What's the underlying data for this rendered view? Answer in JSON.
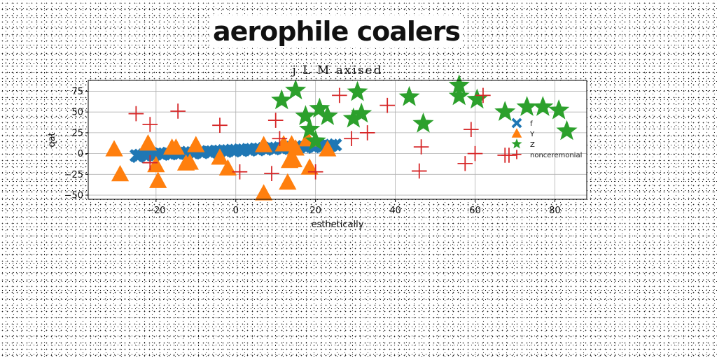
{
  "banner": "aerophile coalers",
  "chart_data": {
    "type": "scatter",
    "title": "j L M axised",
    "xlabel": "esthetically",
    "ylabel": "qat",
    "xlim": [
      -37,
      88
    ],
    "ylim": [
      -55,
      88
    ],
    "xticks": [
      -20,
      0,
      20,
      40,
      60,
      80
    ],
    "xtick_labels": [
      "−20",
      "0",
      "20",
      "40",
      "60",
      "80"
    ],
    "yticks": [
      -50,
      -25,
      0,
      25,
      50,
      75
    ],
    "ytick_labels": [
      "−50",
      "−25",
      "0",
      "25",
      "50",
      "75"
    ],
    "grid": true,
    "legend_position": "center-right",
    "series": [
      {
        "name": "f",
        "marker": "x",
        "color": "#1f77b4",
        "points": [
          [
            -25,
            -2.5
          ],
          [
            -24,
            -2
          ],
          [
            -23,
            -1.5
          ],
          [
            -22,
            -1.5
          ],
          [
            -21,
            -1
          ],
          [
            -20,
            -0.5
          ],
          [
            -19,
            0
          ],
          [
            -18,
            -0.5
          ],
          [
            -17,
            0.5
          ],
          [
            -16,
            0
          ],
          [
            -15,
            0.5
          ],
          [
            -14,
            1
          ],
          [
            -13,
            1
          ],
          [
            -12,
            1.5
          ],
          [
            -11,
            1
          ],
          [
            -10,
            1.5
          ],
          [
            -9,
            2
          ],
          [
            -8,
            2
          ],
          [
            -7,
            2.5
          ],
          [
            -6,
            2
          ],
          [
            -5,
            3
          ],
          [
            -4,
            3
          ],
          [
            -3,
            3.5
          ],
          [
            -2,
            3.5
          ],
          [
            -1,
            4
          ],
          [
            0,
            4
          ],
          [
            1,
            4.5
          ],
          [
            2,
            4.5
          ],
          [
            3,
            5
          ],
          [
            4,
            5
          ],
          [
            5,
            5.5
          ],
          [
            6,
            5.5
          ],
          [
            7,
            6
          ],
          [
            8,
            6
          ],
          [
            9,
            6.5
          ],
          [
            10,
            6.5
          ],
          [
            11,
            7
          ],
          [
            12,
            7
          ],
          [
            13,
            7.5
          ],
          [
            14,
            7.5
          ],
          [
            15,
            8
          ],
          [
            16,
            8
          ],
          [
            17,
            8.5
          ],
          [
            18,
            8.5
          ],
          [
            19,
            9
          ],
          [
            20,
            9
          ],
          [
            21,
            9.5
          ],
          [
            22,
            9.5
          ],
          [
            23,
            10
          ],
          [
            24,
            10
          ],
          [
            25,
            10.5
          ],
          [
            -24.5,
            -3.5
          ],
          [
            -22.5,
            -2.5
          ],
          [
            -20.5,
            -1.5
          ],
          [
            -18.5,
            -1
          ],
          [
            -16.5,
            -0.5
          ],
          [
            -14.5,
            0
          ],
          [
            -12.5,
            0.5
          ],
          [
            -10.5,
            0.5
          ],
          [
            -8.5,
            1
          ],
          [
            -6.5,
            1.5
          ],
          [
            -4.5,
            2
          ],
          [
            -2.5,
            2.5
          ],
          [
            -0.5,
            3
          ],
          [
            1.5,
            3.5
          ],
          [
            3.5,
            4
          ],
          [
            5.5,
            4.5
          ],
          [
            7.5,
            5
          ],
          [
            9.5,
            5.5
          ],
          [
            11.5,
            6
          ],
          [
            13.5,
            6.5
          ],
          [
            15.5,
            7
          ],
          [
            17.5,
            7.5
          ],
          [
            19.5,
            8
          ],
          [
            21.5,
            8.5
          ],
          [
            23.5,
            9
          ]
        ]
      },
      {
        "name": "Y",
        "marker": "^",
        "color": "#ff7f0e",
        "points": [
          [
            -30.5,
            5
          ],
          [
            -29,
            -25
          ],
          [
            -22,
            12
          ],
          [
            -20,
            -14
          ],
          [
            -19.5,
            -33
          ],
          [
            -16,
            7
          ],
          [
            -15,
            7
          ],
          [
            -12.5,
            -12
          ],
          [
            -11.5,
            -11
          ],
          [
            -10,
            10
          ],
          [
            -4,
            -5
          ],
          [
            -2,
            -18
          ],
          [
            7,
            10
          ],
          [
            7,
            -48
          ],
          [
            12,
            11
          ],
          [
            13,
            -35
          ],
          [
            13.5,
            -9
          ],
          [
            14,
            11
          ],
          [
            14.5,
            -8
          ],
          [
            15,
            6
          ],
          [
            18,
            17
          ],
          [
            18.5,
            -17
          ],
          [
            23,
            5
          ]
        ]
      },
      {
        "name": "Z",
        "marker": "*",
        "color": "#2ca02c",
        "points": [
          [
            11.5,
            64
          ],
          [
            15,
            76
          ],
          [
            17.5,
            45
          ],
          [
            18.5,
            29
          ],
          [
            20,
            15
          ],
          [
            21,
            54
          ],
          [
            23,
            45
          ],
          [
            29.5,
            42
          ],
          [
            30.5,
            74
          ],
          [
            31.5,
            48
          ],
          [
            43.5,
            68
          ],
          [
            47,
            36
          ],
          [
            56,
            82
          ],
          [
            56,
            69
          ],
          [
            60.5,
            65
          ],
          [
            67.5,
            50
          ],
          [
            73,
            56
          ],
          [
            77,
            56
          ],
          [
            81,
            52
          ],
          [
            83,
            27
          ]
        ]
      },
      {
        "name": "nonceremonial",
        "marker": "+",
        "color": "#d62728",
        "points": [
          [
            -25,
            48
          ],
          [
            -21.5,
            35
          ],
          [
            -21.5,
            -11
          ],
          [
            -14.5,
            51
          ],
          [
            -4,
            34
          ],
          [
            1,
            -22
          ],
          [
            9,
            -24
          ],
          [
            10,
            40
          ],
          [
            11,
            18
          ],
          [
            20,
            -22
          ],
          [
            26,
            70
          ],
          [
            29,
            18
          ],
          [
            33,
            25
          ],
          [
            38,
            58
          ],
          [
            46,
            -21
          ],
          [
            46.5,
            8
          ],
          [
            57.5,
            -12
          ],
          [
            59,
            29
          ],
          [
            60,
            0
          ],
          [
            62,
            70
          ],
          [
            67.5,
            -2
          ],
          [
            68.5,
            -2
          ]
        ]
      }
    ]
  }
}
